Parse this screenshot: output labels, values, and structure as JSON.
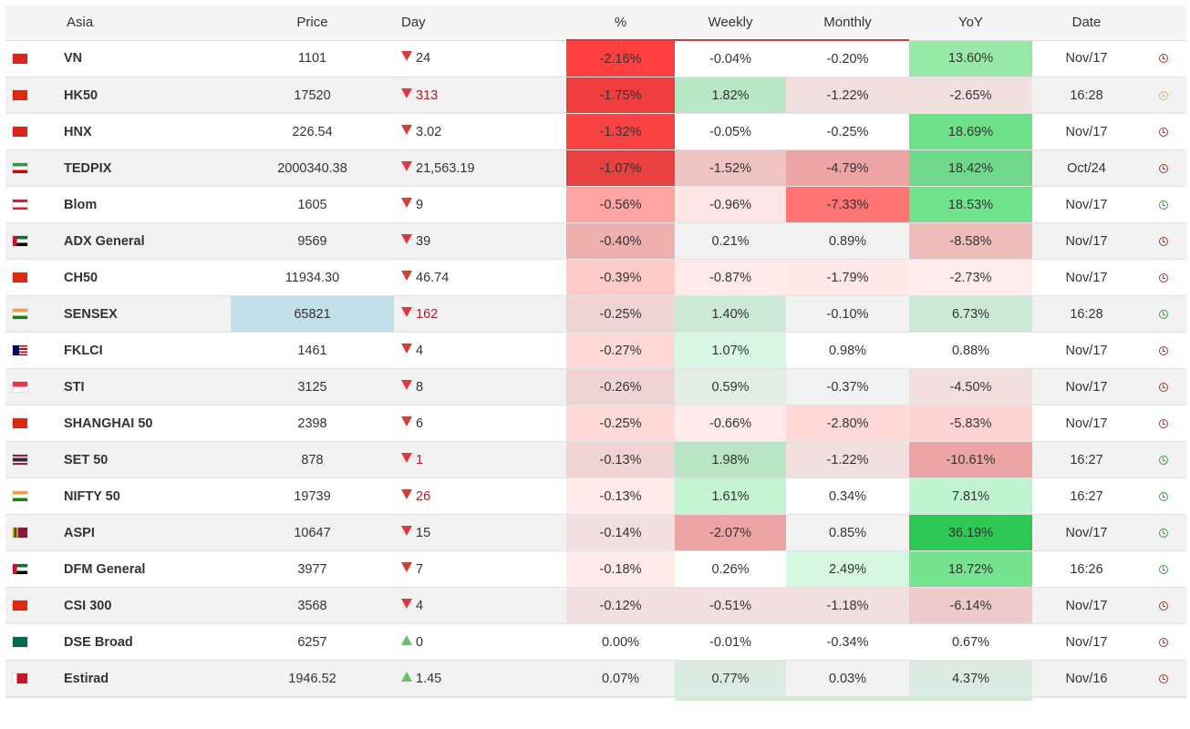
{
  "header": {
    "region": "Asia",
    "price": "Price",
    "day": "Day",
    "pct": "%",
    "weekly": "Weekly",
    "monthly": "Monthly",
    "yoy": "YoY",
    "date": "Date"
  },
  "rows": [
    {
      "flag": "VN",
      "name": "VN",
      "price": "1101",
      "dir": "down",
      "day": "24",
      "day_color": "dark",
      "pct": "-2.16%",
      "pct_bg": "#ff3f3f",
      "weekly": "-0.04%",
      "weekly_bg": "",
      "monthly": "-0.20%",
      "monthly_bg": "",
      "yoy": "13.60%",
      "yoy_bg": "#98e8a8",
      "date": "Nov/17",
      "clock": "red"
    },
    {
      "flag": "HK",
      "name": "HK50",
      "price": "17520",
      "dir": "down",
      "day": "313",
      "day_color": "red",
      "pct": "-1.75%",
      "pct_bg": "#f13d3d",
      "weekly": "1.82%",
      "weekly_bg": "#b8e8c6",
      "monthly": "-1.22%",
      "monthly_bg": "#f2dfdf",
      "yoy": "-2.65%",
      "yoy_bg": "#f3e1e1",
      "date": "16:28",
      "clock": "orange"
    },
    {
      "flag": "VN",
      "name": "HNX",
      "price": "226.54",
      "dir": "down",
      "day": "3.02",
      "day_color": "dark",
      "pct": "-1.32%",
      "pct_bg": "#f94343",
      "weekly": "-0.05%",
      "weekly_bg": "",
      "monthly": "-0.25%",
      "monthly_bg": "",
      "yoy": "18.69%",
      "yoy_bg": "#6fe08a",
      "date": "Nov/17",
      "clock": "red"
    },
    {
      "flag": "IR",
      "name": "TEDPIX",
      "price": "2000340.38",
      "dir": "down",
      "day": "21,563.19",
      "day_color": "dark",
      "pct": "-1.07%",
      "pct_bg": "#e84040",
      "weekly": "-1.52%",
      "weekly_bg": "#f0c3c3",
      "monthly": "-4.79%",
      "monthly_bg": "#eca4a4",
      "yoy": "18.42%",
      "yoy_bg": "#6fd88a",
      "date": "Oct/24",
      "clock": "red"
    },
    {
      "flag": "LB",
      "name": "Blom",
      "price": "1605",
      "dir": "down",
      "day": "9",
      "day_color": "dark",
      "pct": "-0.56%",
      "pct_bg": "#ffa3a3",
      "weekly": "-0.96%",
      "weekly_bg": "#ffe6e6",
      "monthly": "-7.33%",
      "monthly_bg": "#ff7575",
      "yoy": "18.53%",
      "yoy_bg": "#71e38c",
      "date": "Nov/17",
      "clock": "green"
    },
    {
      "flag": "AE",
      "name": "ADX General",
      "price": "9569",
      "dir": "down",
      "day": "39",
      "day_color": "dark",
      "pct": "-0.40%",
      "pct_bg": "#eeafaf",
      "weekly": "0.21%",
      "weekly_bg": "",
      "monthly": "0.89%",
      "monthly_bg": "",
      "yoy": "-8.58%",
      "yoy_bg": "#efbcbc",
      "date": "Nov/17",
      "clock": "red"
    },
    {
      "flag": "CN",
      "name": "CH50",
      "price": "11934.30",
      "dir": "down",
      "day": "46.74",
      "day_color": "dark",
      "pct": "-0.39%",
      "pct_bg": "#ffcaca",
      "weekly": "-0.87%",
      "weekly_bg": "#ffeaea",
      "monthly": "-1.79%",
      "monthly_bg": "#ffe8e8",
      "yoy": "-2.73%",
      "yoy_bg": "#ffeded",
      "date": "Nov/17",
      "clock": "red"
    },
    {
      "flag": "IN",
      "name": "SENSEX",
      "price": "65821",
      "price_bg": "#c3dfea",
      "dir": "down",
      "day": "162",
      "day_color": "red",
      "pct": "-0.25%",
      "pct_bg": "#f0d4d4",
      "weekly": "1.40%",
      "weekly_bg": "#cbe9d6",
      "monthly": "-0.10%",
      "monthly_bg": "",
      "yoy": "6.73%",
      "yoy_bg": "#cbead6",
      "date": "16:28",
      "clock": "green"
    },
    {
      "flag": "MY",
      "name": "FKLCI",
      "price": "1461",
      "dir": "down",
      "day": "4",
      "day_color": "dark",
      "pct": "-0.27%",
      "pct_bg": "#ffd8d8",
      "weekly": "1.07%",
      "weekly_bg": "#d8f7e2",
      "monthly": "0.98%",
      "monthly_bg": "",
      "yoy": "0.88%",
      "yoy_bg": "",
      "date": "Nov/17",
      "clock": "red"
    },
    {
      "flag": "SG",
      "name": "STI",
      "price": "3125",
      "dir": "down",
      "day": "8",
      "day_color": "dark",
      "pct": "-0.26%",
      "pct_bg": "#f0d4d4",
      "weekly": "0.59%",
      "weekly_bg": "#e2ede6",
      "monthly": "-0.37%",
      "monthly_bg": "",
      "yoy": "-4.50%",
      "yoy_bg": "#f2dfdf",
      "date": "Nov/17",
      "clock": "red"
    },
    {
      "flag": "CN",
      "name": "SHANGHAI 50",
      "price": "2398",
      "dir": "down",
      "day": "6",
      "day_color": "dark",
      "pct": "-0.25%",
      "pct_bg": "#ffd8d8",
      "weekly": "-0.66%",
      "weekly_bg": "#ffeaea",
      "monthly": "-2.80%",
      "monthly_bg": "#ffd8d8",
      "yoy": "-5.83%",
      "yoy_bg": "#ffd3d3",
      "date": "Nov/17",
      "clock": "red"
    },
    {
      "flag": "TH",
      "name": "SET 50",
      "price": "878",
      "dir": "down",
      "day": "1",
      "day_color": "red",
      "pct": "-0.13%",
      "pct_bg": "#f0d4d4",
      "weekly": "1.98%",
      "weekly_bg": "#b8e6c4",
      "monthly": "-1.22%",
      "monthly_bg": "#f2dfdf",
      "yoy": "-10.61%",
      "yoy_bg": "#eca4a4",
      "date": "16:27",
      "clock": "green"
    },
    {
      "flag": "IN",
      "name": "NIFTY 50",
      "price": "19739",
      "dir": "down",
      "day": "26",
      "day_color": "red",
      "pct": "-0.13%",
      "pct_bg": "#ffeaea",
      "weekly": "1.61%",
      "weekly_bg": "#c3f3d0",
      "monthly": "0.34%",
      "monthly_bg": "",
      "yoy": "7.81%",
      "yoy_bg": "#c0f3cf",
      "date": "16:27",
      "clock": "green"
    },
    {
      "flag": "LK",
      "name": "ASPI",
      "price": "10647",
      "dir": "down",
      "day": "15",
      "day_color": "dark",
      "pct": "-0.14%",
      "pct_bg": "#f2dfdf",
      "weekly": "-2.07%",
      "weekly_bg": "#eca4a4",
      "monthly": "0.85%",
      "monthly_bg": "",
      "yoy": "36.19%",
      "yoy_bg": "#2ec855",
      "date": "Nov/17",
      "clock": "green"
    },
    {
      "flag": "AE",
      "name": "DFM General",
      "price": "3977",
      "dir": "down",
      "day": "7",
      "day_color": "dark",
      "pct": "-0.18%",
      "pct_bg": "#ffeaea",
      "weekly": "0.26%",
      "weekly_bg": "",
      "monthly": "2.49%",
      "monthly_bg": "#d5f6df",
      "yoy": "18.72%",
      "yoy_bg": "#75e38f",
      "date": "16:26",
      "clock": "green"
    },
    {
      "flag": "CN",
      "name": "CSI 300",
      "price": "3568",
      "dir": "down",
      "day": "4",
      "day_color": "dark",
      "pct": "-0.12%",
      "pct_bg": "#f2dfdf",
      "weekly": "-0.51%",
      "weekly_bg": "#f2dfdf",
      "monthly": "-1.18%",
      "monthly_bg": "#f2dfdf",
      "yoy": "-6.14%",
      "yoy_bg": "#efcaca",
      "date": "Nov/17",
      "clock": "red"
    },
    {
      "flag": "BD",
      "name": "DSE Broad",
      "price": "6257",
      "dir": "up",
      "day": "0",
      "day_color": "dark",
      "pct": "0.00%",
      "pct_bg": "",
      "weekly": "-0.01%",
      "weekly_bg": "",
      "monthly": "-0.34%",
      "monthly_bg": "",
      "yoy": "0.67%",
      "yoy_bg": "",
      "date": "Nov/17",
      "clock": "red"
    },
    {
      "flag": "BH",
      "name": "Estirad",
      "price": "1946.52",
      "dir": "up",
      "day": "1.45",
      "day_color": "dark",
      "pct": "0.07%",
      "pct_bg": "",
      "weekly": "0.77%",
      "weekly_bg": "#dcebe1",
      "monthly": "0.03%",
      "monthly_bg": "",
      "yoy": "4.37%",
      "yoy_bg": "#dcebe1",
      "date": "Nov/16",
      "clock": "red"
    }
  ]
}
